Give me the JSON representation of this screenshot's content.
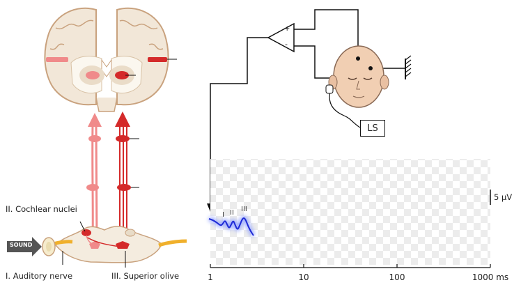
{
  "labels": {
    "cochlear_nuclei": "II. Cochlear nuclei",
    "auditory_nerve": "I. Auditory nerve",
    "superior_olive": "III. Superior olive",
    "sound": "SOUND",
    "ls": "LS",
    "plus": "+",
    "minus": "-",
    "scale_bar": "5 µV",
    "peak_labels": [
      "I",
      "II",
      "III"
    ]
  },
  "axis": {
    "tick_labels": [
      "1",
      "10",
      "100",
      "1000 ms"
    ],
    "scale": "log"
  },
  "colors": {
    "pathway_dark": "#d42a2a",
    "pathway_light": "#f08a8a",
    "waveform": "#1f2bd6",
    "waveform_glow": "#8fa0ff",
    "brain_outline": "#c9a27e"
  }
}
